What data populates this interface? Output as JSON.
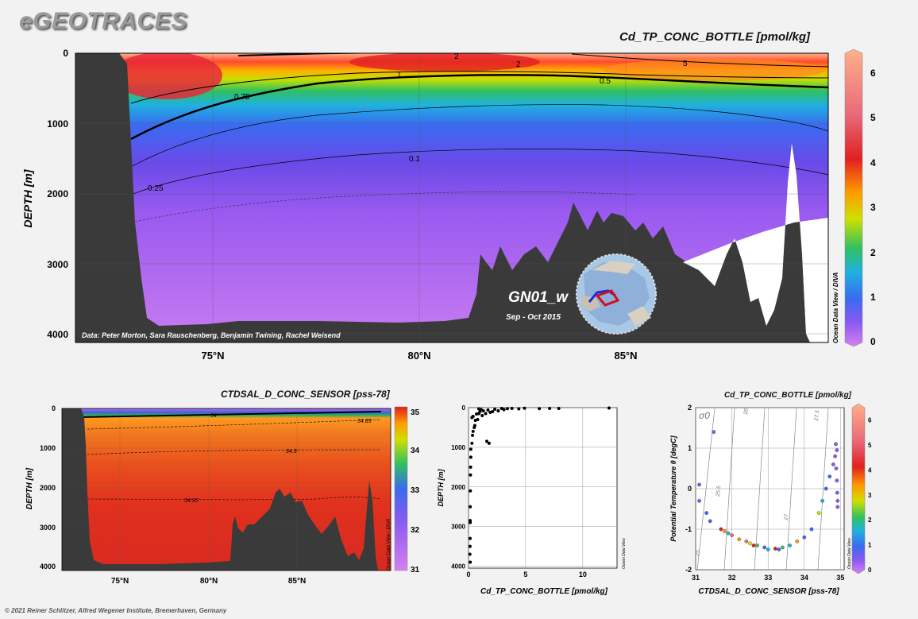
{
  "header": {
    "logo": "eGEOTRACES",
    "copyright": "© 2021 Reiner Schlitzer, Alfred Wegener Institute, Bremerhaven, Germany"
  },
  "colors": {
    "land": "#3a3a3a",
    "deep_low": "#c77cf0",
    "mid": "#7b4de8",
    "shallow_high": "#ff5a2a",
    "salinity_fill": "#e0301e"
  },
  "chart_data": [
    {
      "type": "heatmap",
      "title": "Cd_TP_CONC_BOTTLE [pmol/kg]",
      "ylabel": "DEPTH [m]",
      "side_label": "Ocean Data View / DIVA",
      "x_ticks": [
        "75°N",
        "80°N",
        "85°N"
      ],
      "y_ticks": [
        "0",
        "1000",
        "2000",
        "3000",
        "4000"
      ],
      "ylim": [
        4000,
        0
      ],
      "colorbar": {
        "ticks": [
          "0",
          "1",
          "2",
          "3",
          "4",
          "5",
          "6"
        ],
        "range": [
          0,
          6.5
        ]
      },
      "contour_labels": [
        "0.75",
        "0.25",
        "0.1",
        "1",
        "0.5",
        "2",
        "5",
        "2"
      ],
      "data_credit": "Data: Peter Morton, Sara Rauschenberg, Benjamin Twining, Rachel Weisend",
      "section": "GN01_w",
      "period": "Sep - Oct 2015"
    },
    {
      "type": "heatmap",
      "title": "CTDSAL_D_CONC_SENSOR [pss-78]",
      "ylabel": "DEPTH [m]",
      "side_label": "Ocean Data View / DIVA",
      "x_ticks": [
        "75°N",
        "80°N",
        "85°N"
      ],
      "y_ticks": [
        "0",
        "1000",
        "2000",
        "3000",
        "4000"
      ],
      "ylim": [
        4100,
        0
      ],
      "colorbar": {
        "ticks": [
          "35",
          "34",
          "33",
          "32",
          "31"
        ],
        "range": [
          31,
          35
        ]
      },
      "contour_labels": [
        "34",
        "34.85",
        "34.9",
        "34.95"
      ]
    },
    {
      "type": "scatter",
      "xlabel": "Cd_TP_CONC_BOTTLE [pmol/kg]",
      "ylabel": "DEPTH [m]",
      "side_label": "Ocean Data View",
      "x_ticks": [
        "0",
        "5",
        "10"
      ],
      "y_ticks": [
        "0",
        "1000",
        "2000",
        "3000",
        "4000"
      ],
      "xlim": [
        0,
        13
      ],
      "ylim": [
        4050,
        0
      ],
      "points": [
        [
          12.3,
          10
        ],
        [
          7.9,
          20
        ],
        [
          7.1,
          20
        ],
        [
          6.2,
          25
        ],
        [
          4.9,
          15
        ],
        [
          4.4,
          30
        ],
        [
          3.8,
          20
        ],
        [
          3.4,
          25
        ],
        [
          3.1,
          50
        ],
        [
          2.9,
          20
        ],
        [
          2.6,
          80
        ],
        [
          2.3,
          40
        ],
        [
          2.1,
          100
        ],
        [
          1.9,
          120
        ],
        [
          1.7,
          60
        ],
        [
          1.5,
          150
        ],
        [
          1.3,
          80
        ],
        [
          1.2,
          200
        ],
        [
          1.0,
          100
        ],
        [
          0.9,
          150
        ],
        [
          0.8,
          300
        ],
        [
          0.7,
          160
        ],
        [
          0.6,
          320
        ],
        [
          0.55,
          450
        ],
        [
          0.5,
          500
        ],
        [
          0.4,
          220
        ],
        [
          0.4,
          600
        ],
        [
          0.35,
          700
        ],
        [
          0.3,
          900
        ],
        [
          0.3,
          250
        ],
        [
          1.6,
          850
        ],
        [
          1.8,
          900
        ],
        [
          0.2,
          1050
        ],
        [
          0.2,
          1250
        ],
        [
          0.18,
          1500
        ],
        [
          0.17,
          1700
        ],
        [
          0.16,
          2100
        ],
        [
          0.15,
          2500
        ],
        [
          0.14,
          2850
        ],
        [
          0.15,
          2900
        ],
        [
          0.14,
          3300
        ],
        [
          0.13,
          3500
        ],
        [
          0.12,
          3700
        ],
        [
          0.15,
          3900
        ],
        [
          0.9,
          30
        ],
        [
          1.1,
          50
        ]
      ]
    },
    {
      "type": "scatter",
      "title": "Cd_TP_CONC_BOTTLE [pmol/kg]",
      "xlabel": "CTDSAL_D_CONC_SENSOR [pss-78]",
      "ylabel": "Potential Temperature θ [degC]",
      "side_label": "Ocean Data View",
      "x_ticks": [
        "31",
        "32",
        "33",
        "34",
        "35"
      ],
      "y_ticks": [
        "2",
        "1",
        "0",
        "-1",
        "-2"
      ],
      "xlim": [
        31,
        35.1
      ],
      "ylim": [
        -2,
        2
      ],
      "isopycnal_labels": [
        "25.5",
        "27",
        "27.5",
        "26",
        "25"
      ],
      "isopycnal_symbol": "σ0",
      "colorbar": {
        "ticks": [
          "0",
          "1",
          "2",
          "3",
          "4",
          "5",
          "6"
        ],
        "range": [
          0,
          6.5
        ]
      },
      "points": [
        [
          31.1,
          0.1,
          0.5
        ],
        [
          31.1,
          -0.3,
          0.4
        ],
        [
          31.3,
          -0.6,
          0.8
        ],
        [
          31.4,
          -0.8,
          1.0
        ],
        [
          31.7,
          -1.0,
          3.5
        ],
        [
          31.8,
          -1.05,
          2.8
        ],
        [
          31.9,
          -1.1,
          1.5
        ],
        [
          32.0,
          -1.15,
          4.5
        ],
        [
          32.2,
          -1.25,
          3.0
        ],
        [
          32.4,
          -1.3,
          5.0
        ],
        [
          32.5,
          -1.35,
          2.5
        ],
        [
          32.7,
          -1.4,
          1.8
        ],
        [
          32.9,
          -1.45,
          0.9
        ],
        [
          33.0,
          -1.5,
          1.2
        ],
        [
          33.2,
          -1.48,
          4.0
        ],
        [
          33.4,
          -1.45,
          2.0
        ],
        [
          33.6,
          -1.4,
          1.5
        ],
        [
          33.8,
          -1.3,
          3.2
        ],
        [
          34.0,
          -1.2,
          1.0
        ],
        [
          34.2,
          -1.0,
          0.8
        ],
        [
          34.4,
          -0.6,
          2.2
        ],
        [
          34.5,
          -0.3,
          1.4
        ],
        [
          34.6,
          0.0,
          0.9
        ],
        [
          34.7,
          0.3,
          0.6
        ],
        [
          34.8,
          0.6,
          0.4
        ],
        [
          34.85,
          0.8,
          0.3
        ],
        [
          34.88,
          0.5,
          0.2
        ],
        [
          34.9,
          0.2,
          0.2
        ],
        [
          34.91,
          -0.1,
          0.15
        ],
        [
          34.92,
          -0.3,
          0.1
        ],
        [
          34.92,
          -0.45,
          0.1
        ],
        [
          34.9,
          0.95,
          0.3
        ],
        [
          34.87,
          1.1,
          0.4
        ],
        [
          31.5,
          1.4,
          0.2
        ],
        [
          32.6,
          -1.4,
          3.6
        ],
        [
          33.3,
          -1.5,
          0.7
        ]
      ]
    }
  ]
}
